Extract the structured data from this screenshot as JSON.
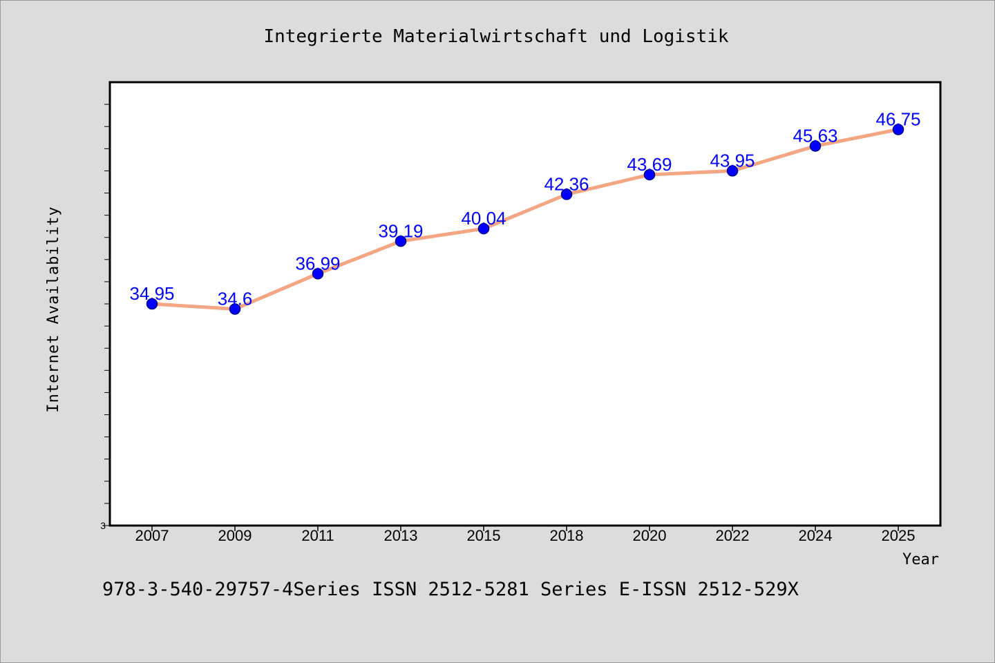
{
  "chart_data": {
    "type": "line",
    "title": "Integrierte Materialwirtschaft und Logistik",
    "xlabel": "Year",
    "ylabel": "Internet Availability",
    "categories": [
      "2007",
      "2009",
      "2011",
      "2013",
      "2015",
      "2018",
      "2020",
      "2022",
      "2024",
      "2025"
    ],
    "series": [
      {
        "values": [
          34.95,
          34.6,
          36.99,
          39.19,
          40.04,
          42.36,
          43.69,
          43.95,
          45.63,
          46.75
        ],
        "data_labels": [
          "34.95",
          "34.6",
          "36.99",
          "39.19",
          "40.04",
          "42.36",
          "43.69",
          "43.95",
          "45.63",
          "46.75"
        ]
      }
    ],
    "y_tick_labels": [
      "3"
    ],
    "ylim": [
      19.95,
      49.95
    ],
    "grid": false,
    "colors": {
      "line": "#f4a582",
      "marker": "#0000ff",
      "marker_edge": "#00008b",
      "label": "#0000ff"
    }
  },
  "footer": {
    "text": "978-3-540-29757-4Series ISSN 2512-5281 Series E-ISSN 2512-529X"
  }
}
